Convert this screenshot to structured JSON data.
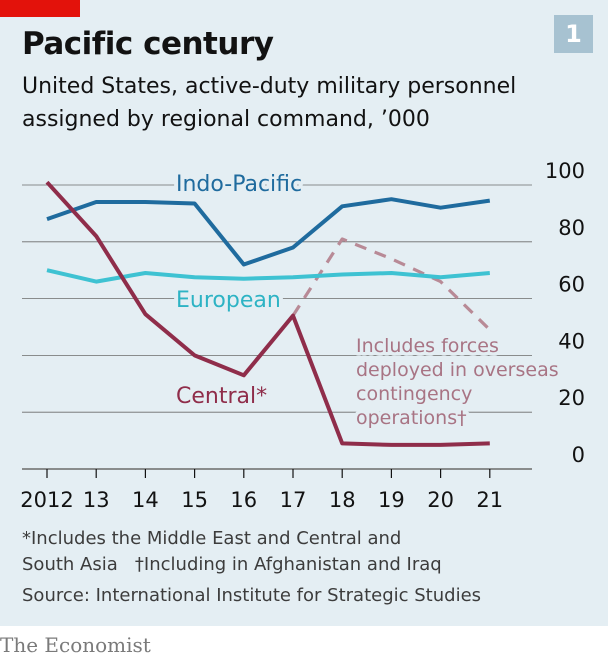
{
  "header": {
    "title": "Pacific century",
    "chart_number": "1",
    "subtitle_line1": "United States, active-duty military personnel",
    "subtitle_line2": "assigned by regional command, ’000"
  },
  "colors": {
    "background": "#e4eef3",
    "accent_red": "#e3120b",
    "indo_pacific": "#1f6b9e",
    "european": "#3ec2d2",
    "central": "#8f2d4a",
    "central_ooc": "#b88a96",
    "grid": "#6b6b6b"
  },
  "chart_data": {
    "type": "line",
    "x": [
      2012,
      2013,
      2014,
      2015,
      2016,
      2017,
      2018,
      2019,
      2020,
      2021
    ],
    "x_tick_labels": [
      "2012",
      "13",
      "14",
      "15",
      "16",
      "17",
      "18",
      "19",
      "20",
      "21"
    ],
    "y_ticks": [
      "0",
      "20",
      "40",
      "60",
      "80",
      "100"
    ],
    "ylim": [
      0,
      100
    ],
    "series": [
      {
        "name": "Indo-Pacific",
        "values": [
          88,
          94,
          94,
          93.5,
          72,
          78,
          92.5,
          95,
          92,
          94.5
        ]
      },
      {
        "name": "European",
        "values": [
          70,
          66,
          69,
          67.5,
          67,
          67.5,
          68.5,
          69,
          67.5,
          69
        ]
      },
      {
        "name": "Central*",
        "values": [
          101,
          82,
          54.5,
          40,
          33,
          54,
          9,
          8.5,
          8.5,
          9
        ]
      },
      {
        "name": "Includes forces deployed in overseas contingency operations†",
        "x": [
          2017,
          2018,
          2019,
          2020,
          2021
        ],
        "values": [
          54,
          81,
          74,
          66,
          49
        ]
      }
    ],
    "annotation_lines": [
      "Includes forces",
      "deployed in overseas",
      "contingency",
      "operations†"
    ]
  },
  "footer": {
    "note_line1": "*Includes the Middle East and Central and",
    "note_line2": "South Asia   †Including in Afghanistan and Iraq",
    "source": "Source: International Institute for Strategic Studies",
    "brand": "The Economist"
  }
}
